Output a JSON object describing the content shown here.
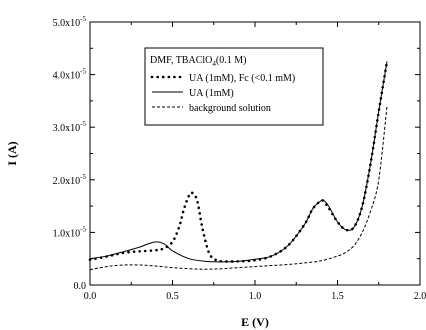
{
  "chart_data": {
    "type": "line",
    "xlabel": "E (V)",
    "ylabel": "I (A)",
    "xlim": [
      0.0,
      2.0
    ],
    "ylim": [
      0.0,
      5e-05
    ],
    "x_ticks": [
      "0.0",
      "0.5",
      "1.0",
      "1.5",
      "2.0"
    ],
    "y_ticks": [
      {
        "mantissa": "0.0",
        "exp": ""
      },
      {
        "mantissa": "1.0x10",
        "exp": "-5"
      },
      {
        "mantissa": "2.0x10",
        "exp": "-5"
      },
      {
        "mantissa": "3.0x10",
        "exp": "-5"
      },
      {
        "mantissa": "4.0x10",
        "exp": "-5"
      },
      {
        "mantissa": "5.0x10",
        "exp": "-5"
      }
    ],
    "legend": {
      "placement": "top-right",
      "title_prefix": "DMF, TBAClO",
      "title_sub": "4",
      "title_suffix": "(0.1 M)"
    },
    "series": [
      {
        "name": "UA (1mM), Fc (<0.1 mM)",
        "style": "dotted",
        "x": [
          0.0,
          0.1,
          0.2,
          0.3,
          0.4,
          0.45,
          0.5,
          0.54,
          0.57,
          0.6,
          0.62,
          0.65,
          0.68,
          0.72,
          0.76,
          0.8,
          0.9,
          1.0,
          1.1,
          1.2,
          1.3,
          1.35,
          1.4,
          1.42,
          1.45,
          1.5,
          1.55,
          1.6,
          1.65,
          1.7,
          1.75,
          1.8
        ],
        "y": [
          4.8e-06,
          5.4e-06,
          6.1e-06,
          6.4e-06,
          6.6e-06,
          7e-06,
          8.2e-06,
          1.1e-05,
          1.45e-05,
          1.7e-05,
          1.75e-05,
          1.6e-05,
          1.1e-05,
          6.2e-06,
          4.8e-06,
          4.5e-06,
          4.5e-06,
          4.7e-06,
          5.5e-06,
          7.5e-06,
          1.15e-05,
          1.45e-05,
          1.6e-05,
          1.58e-05,
          1.45e-05,
          1.2e-05,
          1.05e-05,
          1.1e-05,
          1.5e-05,
          2.3e-05,
          3.3e-05,
          4.25e-05
        ]
      },
      {
        "name": "UA (1mM)",
        "style": "solid",
        "x": [
          0.0,
          0.1,
          0.2,
          0.3,
          0.35,
          0.4,
          0.45,
          0.5,
          0.6,
          0.7,
          0.8,
          0.9,
          1.0,
          1.1,
          1.2,
          1.3,
          1.35,
          1.4,
          1.42,
          1.45,
          1.5,
          1.55,
          1.6,
          1.65,
          1.7,
          1.75,
          1.8
        ],
        "y": [
          5e-06,
          5.5e-06,
          6.3e-06,
          7.2e-06,
          7.8e-06,
          8.2e-06,
          7.8e-06,
          6.5e-06,
          5e-06,
          4.5e-06,
          4.4e-06,
          4.5e-06,
          4.9e-06,
          5.5e-06,
          7.5e-06,
          1.15e-05,
          1.45e-05,
          1.6e-05,
          1.6e-05,
          1.48e-05,
          1.2e-05,
          1.05e-05,
          1.1e-05,
          1.5e-05,
          2.3e-05,
          3.3e-05,
          4.25e-05
        ]
      },
      {
        "name": "background solution",
        "style": "dashed",
        "x": [
          0.0,
          0.1,
          0.2,
          0.3,
          0.4,
          0.5,
          0.6,
          0.7,
          0.8,
          0.9,
          1.0,
          1.1,
          1.2,
          1.3,
          1.4,
          1.5,
          1.55,
          1.6,
          1.65,
          1.7,
          1.75,
          1.8
        ],
        "y": [
          2.9e-06,
          3.5e-06,
          3.8e-06,
          3.8e-06,
          3.6e-06,
          3.3e-06,
          3.1e-06,
          3e-06,
          3.1e-06,
          3.3e-06,
          3.5e-06,
          3.7e-06,
          3.9e-06,
          4.2e-06,
          4.6e-06,
          5.5e-06,
          6.2e-06,
          7.5e-06,
          1e-05,
          1.4e-05,
          2e-05,
          3.4e-05
        ]
      }
    ]
  }
}
